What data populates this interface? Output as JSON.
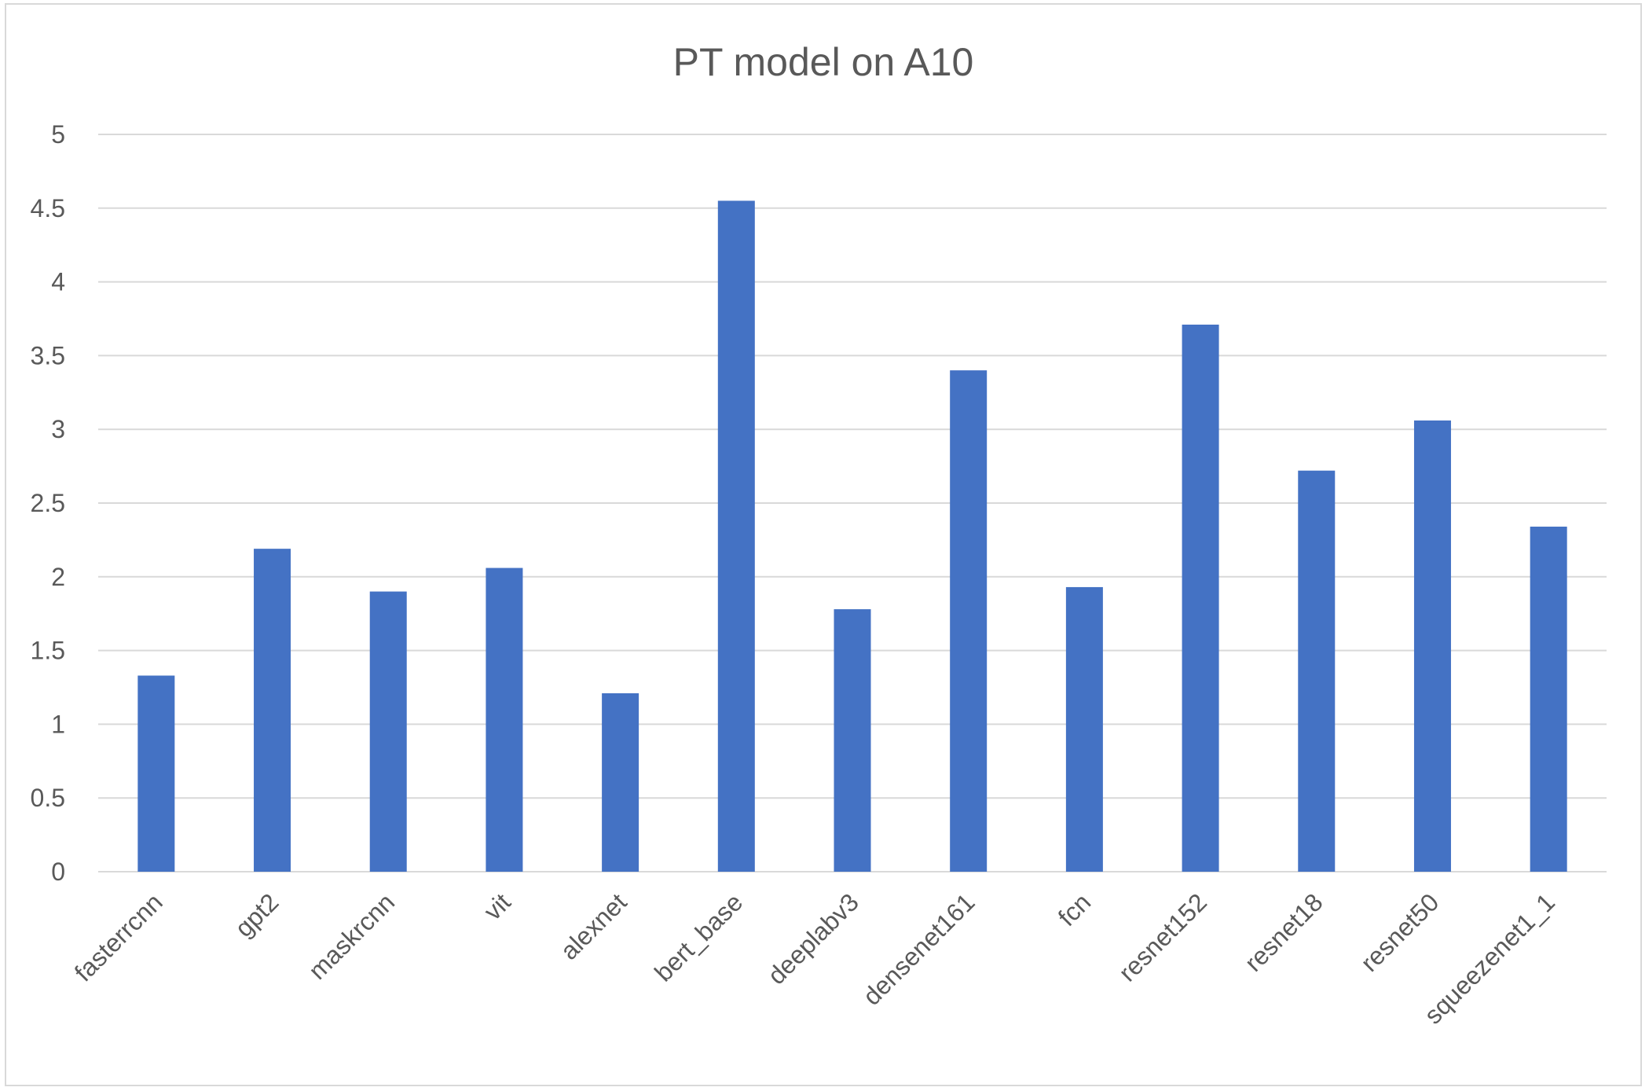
{
  "chart_data": {
    "type": "bar",
    "title": "PT model on A10",
    "xlabel": "",
    "ylabel": "",
    "categories": [
      "fasterrcnn",
      "gpt2",
      "maskrcnn",
      "vit",
      "alexnet",
      "bert_base",
      "deeplabv3",
      "densenet161",
      "fcn",
      "resnet152",
      "resnet18",
      "resnet50",
      "squeezenet1_1"
    ],
    "values": [
      1.33,
      2.19,
      1.9,
      2.06,
      1.21,
      4.55,
      1.78,
      3.4,
      1.93,
      3.71,
      2.72,
      3.06,
      2.34
    ],
    "ylim": [
      0,
      5
    ],
    "yticks": [
      "0",
      "0.5",
      "1",
      "1.5",
      "2",
      "2.5",
      "3",
      "3.5",
      "4",
      "4.5",
      "5"
    ],
    "grid": true,
    "legend": "none",
    "colors": {
      "bar": "#4472c4",
      "grid": "#d9d9d9",
      "text": "#595959"
    }
  }
}
